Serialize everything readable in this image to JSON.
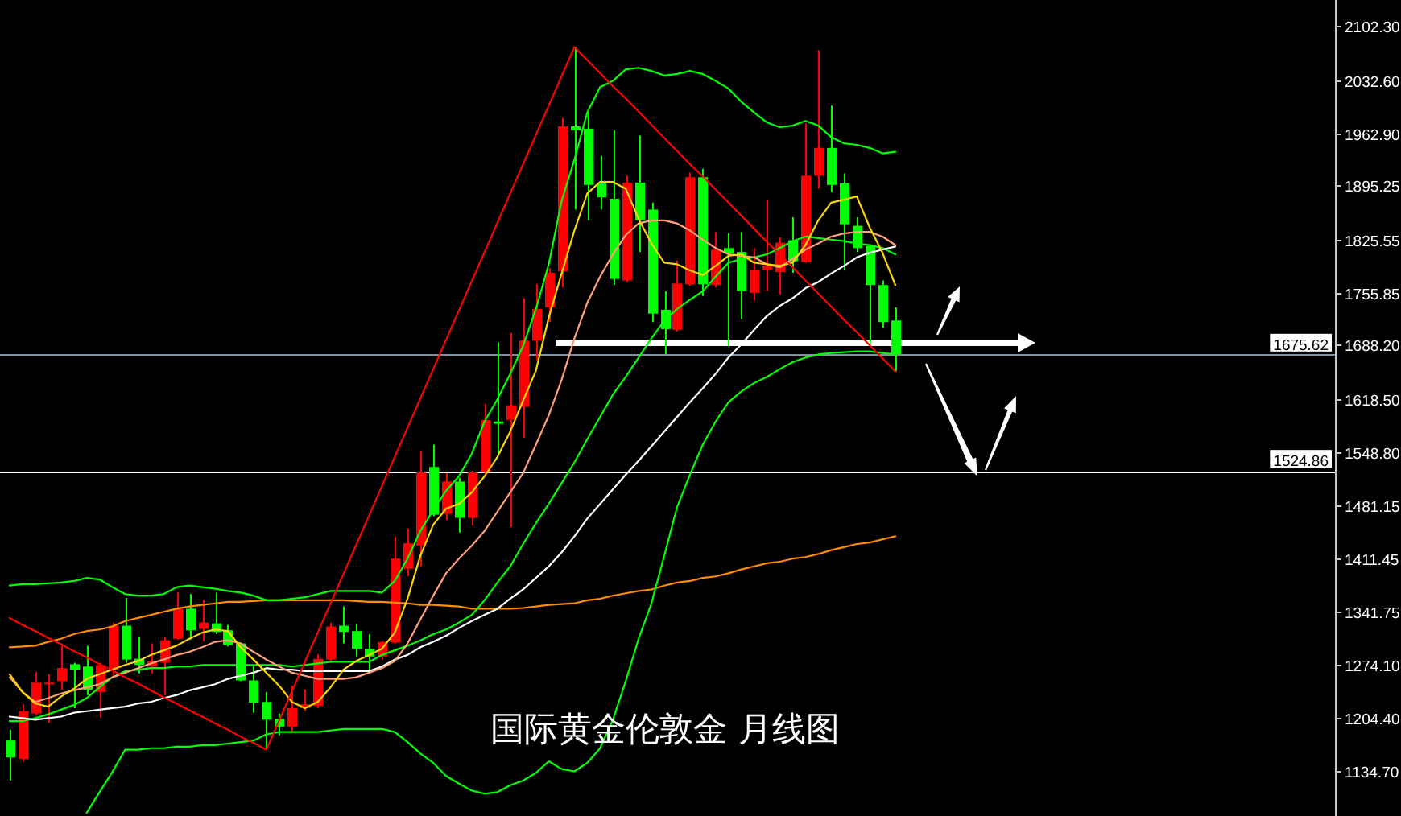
{
  "chart_data": {
    "type": "candlestick",
    "title": "国际黄金伦敦金 月线图",
    "categories": [
      null,
      null,
      null,
      null,
      null,
      null,
      null,
      null,
      null,
      null,
      null,
      null,
      null,
      null,
      null,
      null,
      null,
      null,
      null,
      null,
      null,
      null,
      null,
      null,
      null,
      null,
      null,
      null,
      null,
      null,
      null,
      null,
      null,
      null,
      null,
      null,
      null,
      null,
      null,
      null,
      null,
      null,
      null,
      null,
      null,
      null,
      null,
      null,
      null,
      null,
      null,
      null,
      null,
      null,
      null,
      null,
      null,
      null,
      null,
      null,
      null,
      null,
      null,
      null,
      null,
      null,
      null,
      null,
      null,
      null
    ],
    "ohlc": [
      [
        1175,
        1189,
        1123,
        1153
      ],
      [
        1151,
        1222,
        1147,
        1213
      ],
      [
        1210,
        1264,
        1207,
        1250
      ],
      [
        1248,
        1261,
        1198,
        1250
      ],
      [
        1252,
        1298,
        1241,
        1269
      ],
      [
        1274,
        1276,
        1217,
        1267
      ],
      [
        1271,
        1298,
        1234,
        1241
      ],
      [
        1238,
        1276,
        1205,
        1273
      ],
      [
        1267,
        1328,
        1259,
        1324
      ],
      [
        1324,
        1360,
        1276,
        1280
      ],
      [
        1281,
        1309,
        1262,
        1273
      ],
      [
        1271,
        1301,
        1262,
        1278
      ],
      [
        1276,
        1309,
        1234,
        1305
      ],
      [
        1307,
        1367,
        1306,
        1346
      ],
      [
        1346,
        1365,
        1306,
        1318
      ],
      [
        1320,
        1358,
        1304,
        1328
      ],
      [
        1327,
        1367,
        1313,
        1316
      ],
      [
        1318,
        1325,
        1297,
        1299
      ],
      [
        1301,
        1302,
        1252,
        1253
      ],
      [
        1253,
        1273,
        1211,
        1224
      ],
      [
        1225,
        1238,
        1163,
        1202
      ],
      [
        1203,
        1210,
        1182,
        1193
      ],
      [
        1193,
        1246,
        1186,
        1217
      ],
      [
        1217,
        1241,
        1213,
        1222
      ],
      [
        1220,
        1287,
        1217,
        1281
      ],
      [
        1280,
        1328,
        1278,
        1323
      ],
      [
        1324,
        1349,
        1301,
        1316
      ],
      [
        1317,
        1326,
        1284,
        1294
      ],
      [
        1294,
        1313,
        1267,
        1284
      ],
      [
        1284,
        1304,
        1280,
        1303
      ],
      [
        1302,
        1440,
        1301,
        1411
      ],
      [
        1398,
        1450,
        1388,
        1431
      ],
      [
        1428,
        1551,
        1401,
        1523
      ],
      [
        1530,
        1559,
        1466,
        1468
      ],
      [
        1469,
        1522,
        1461,
        1511
      ],
      [
        1511,
        1516,
        1445,
        1464
      ],
      [
        1464,
        1525,
        1454,
        1523
      ],
      [
        1523,
        1612,
        1520,
        1591
      ],
      [
        1589,
        1692,
        1548,
        1586
      ],
      [
        1591,
        1704,
        1452,
        1610
      ],
      [
        1608,
        1749,
        1568,
        1694
      ],
      [
        1694,
        1767,
        1669,
        1735
      ],
      [
        1737,
        1788,
        1718,
        1782
      ],
      [
        1784,
        1983,
        1763,
        1972
      ],
      [
        1972,
        2075,
        1864,
        1967
      ],
      [
        1969,
        1990,
        1850,
        1896
      ],
      [
        1898,
        1934,
        1864,
        1880
      ],
      [
        1878,
        1967,
        1766,
        1774
      ],
      [
        1772,
        1908,
        1770,
        1899
      ],
      [
        1899,
        1960,
        1809,
        1850
      ],
      [
        1864,
        1873,
        1718,
        1729
      ],
      [
        1734,
        1758,
        1676,
        1709
      ],
      [
        1708,
        1798,
        1706,
        1768
      ],
      [
        1767,
        1912,
        1765,
        1906
      ],
      [
        1906,
        1917,
        1752,
        1767
      ],
      [
        1766,
        1835,
        1763,
        1812
      ],
      [
        1814,
        1833,
        1687,
        1807
      ],
      [
        1809,
        1835,
        1722,
        1758
      ],
      [
        1756,
        1814,
        1746,
        1786
      ],
      [
        1786,
        1877,
        1758,
        1791
      ],
      [
        1783,
        1828,
        1754,
        1821
      ],
      [
        1824,
        1854,
        1782,
        1797
      ],
      [
        1796,
        1976,
        1795,
        1908
      ],
      [
        1908,
        2071,
        1891,
        1944
      ],
      [
        1944,
        1999,
        1887,
        1896
      ],
      [
        1898,
        1911,
        1786,
        1845
      ],
      [
        1843,
        1854,
        1809,
        1814
      ],
      [
        1817,
        1819,
        1690,
        1766
      ],
      [
        1766,
        1772,
        1711,
        1718
      ],
      [
        1720,
        1737,
        1654,
        1676
      ]
    ],
    "colors": [
      "#00ff00",
      "#ff0000",
      "#ff0000",
      "#ff0000",
      "#ff0000",
      "#00ff00",
      "#00ff00",
      "#ff0000",
      "#ff0000",
      "#00ff00",
      "#00ff00",
      "#ff0000",
      "#ff0000",
      "#ff0000",
      "#00ff00",
      "#ff0000",
      "#00ff00",
      "#00ff00",
      "#00ff00",
      "#00ff00",
      "#00ff00",
      "#00ff00",
      "#ff0000",
      "#ff0000",
      "#ff0000",
      "#ff0000",
      "#00ff00",
      "#00ff00",
      "#00ff00",
      "#ff0000",
      "#ff0000",
      "#ff0000",
      "#ff0000",
      "#00ff00",
      "#ff0000",
      "#00ff00",
      "#ff0000",
      "#ff0000",
      "#00ff00",
      "#ff0000",
      "#ff0000",
      "#ff0000",
      "#ff0000",
      "#ff0000",
      "#00ff00",
      "#00ff00",
      "#00ff00",
      "#00ff00",
      "#ff0000",
      "#00ff00",
      "#00ff00",
      "#00ff00",
      "#ff0000",
      "#ff0000",
      "#00ff00",
      "#ff0000",
      "#00ff00",
      "#00ff00",
      "#ff0000",
      "#ff0000",
      "#ff0000",
      "#00ff00",
      "#ff0000",
      "#ff0000",
      "#00ff00",
      "#00ff00",
      "#00ff00",
      "#00ff00",
      "#00ff00",
      "#00ff00"
    ],
    "series": [
      {
        "type": "line",
        "color": "#ff8c00",
        "values": [
          1296,
          1297,
          1298,
          1303,
          1307,
          1313,
          1317,
          1319,
          1323,
          1330,
          1334,
          1338,
          1342,
          1346,
          1349,
          1351,
          1353,
          1355,
          1355,
          1356,
          1357,
          1357,
          1357,
          1357,
          1357,
          1357,
          1357,
          1356,
          1355,
          1355,
          1354,
          1353,
          1351,
          1351,
          1350,
          1349,
          1346,
          1346,
          1346,
          1346,
          1347,
          1349,
          1351,
          1352,
          1353,
          1357,
          1359,
          1363,
          1366,
          1369,
          1371,
          1376,
          1380,
          1382,
          1386,
          1388,
          1392,
          1397,
          1401,
          1405,
          1407,
          1411,
          1413,
          1417,
          1422,
          1426,
          1430,
          1432,
          1436,
          1440
        ]
      },
      {
        "type": "line",
        "color": "#00ff00",
        "values": [
          1376,
          1378,
          1378,
          1379,
          1380,
          1382,
          1386,
          1384,
          1374,
          1365,
          1363,
          1363,
          1365,
          1374,
          1376,
          1374,
          1372,
          1369,
          1367,
          1363,
          1357,
          1357,
          1359,
          1361,
          1365,
          1369,
          1369,
          1369,
          1369,
          1367,
          1382,
          1411,
          1447,
          1474,
          1499,
          1518,
          1547,
          1589,
          1618,
          1651,
          1687,
          1735,
          1793,
          1875,
          1929,
          1990,
          2023,
          2031,
          2046,
          2048,
          2044,
          2038,
          2040,
          2044,
          2040,
          2031,
          2021,
          2004,
          1990,
          1977,
          1971,
          1973,
          1979,
          1973,
          1958,
          1950,
          1948,
          1944,
          1937,
          1939
        ]
      },
      {
        "type": "line",
        "color": "#00ff00",
        "values": [
          1200,
          1200,
          1204,
          1209,
          1215,
          1221,
          1230,
          1244,
          1257,
          1265,
          1267,
          1269,
          1269,
          1271,
          1271,
          1273,
          1273,
          1273,
          1273,
          1273,
          1273,
          1273,
          1271,
          1273,
          1275,
          1277,
          1277,
          1277,
          1277,
          1286,
          1292,
          1298,
          1305,
          1313,
          1319,
          1328,
          1338,
          1357,
          1380,
          1401,
          1430,
          1457,
          1482,
          1509,
          1536,
          1566,
          1595,
          1624,
          1647,
          1672,
          1697,
          1720,
          1735,
          1747,
          1758,
          1777,
          1795,
          1800,
          1802,
          1806,
          1814,
          1823,
          1829,
          1827,
          1825,
          1823,
          1820,
          1818,
          1814,
          1806
        ]
      },
      {
        "type": "line",
        "color": "#00ff00",
        "values": [
          null,
          null,
          null,
          null,
          null,
          null,
          1081,
          1108,
          1134,
          1163,
          1163,
          1165,
          1165,
          1167,
          1167,
          1169,
          1169,
          1171,
          1173,
          1175,
          1183,
          1186,
          1186,
          1186,
          1186,
          1188,
          1190,
          1190,
          1190,
          1190,
          1186,
          1173,
          1158,
          1146,
          1129,
          1119,
          1110,
          1106,
          1108,
          1117,
          1123,
          1133,
          1148,
          1138,
          1135,
          1146,
          1165,
          1202,
          1252,
          1307,
          1353,
          1415,
          1478,
          1520,
          1559,
          1589,
          1614,
          1628,
          1639,
          1647,
          1657,
          1666,
          1672,
          1676,
          1678,
          1679,
          1680,
          1680,
          1678,
          1676
        ]
      },
      {
        "type": "line",
        "color": "#ffffff",
        "values": [
          1206,
          1204,
          1202,
          1204,
          1206,
          1211,
          1213,
          1215,
          1217,
          1219,
          1223,
          1225,
          1230,
          1234,
          1240,
          1244,
          1248,
          1255,
          1259,
          1263,
          1269,
          1267,
          1267,
          1265,
          1265,
          1265,
          1265,
          1265,
          1265,
          1271,
          1280,
          1286,
          1296,
          1303,
          1311,
          1321,
          1330,
          1338,
          1346,
          1359,
          1371,
          1386,
          1401,
          1419,
          1440,
          1463,
          1482,
          1501,
          1520,
          1538,
          1557,
          1576,
          1595,
          1614,
          1632,
          1651,
          1672,
          1689,
          1708,
          1726,
          1739,
          1749,
          1762,
          1770,
          1781,
          1791,
          1802,
          1808,
          1812,
          1816
        ]
      },
      {
        "type": "line",
        "color": "#ffa07a",
        "values": [
          1257,
          1238,
          1225,
          1230,
          1236,
          1240,
          1244,
          1248,
          1257,
          1263,
          1269,
          1275,
          1280,
          1286,
          1290,
          1296,
          1303,
          1305,
          1301,
          1290,
          1280,
          1271,
          1263,
          1259,
          1255,
          1255,
          1255,
          1257,
          1263,
          1269,
          1278,
          1301,
          1332,
          1363,
          1392,
          1411,
          1428,
          1447,
          1472,
          1497,
          1522,
          1559,
          1597,
          1643,
          1697,
          1743,
          1777,
          1806,
          1831,
          1846,
          1850,
          1850,
          1846,
          1837,
          1825,
          1814,
          1806,
          1804,
          1802,
          1793,
          1789,
          1800,
          1812,
          1820,
          1829,
          1833,
          1835,
          1835,
          1829,
          1818
        ]
      },
      {
        "type": "line",
        "color": "#ffd700",
        "values": [
          1261,
          1238,
          1223,
          1219,
          1232,
          1242,
          1255,
          1261,
          1267,
          1273,
          1278,
          1286,
          1292,
          1298,
          1307,
          1315,
          1319,
          1317,
          1296,
          1280,
          1263,
          1246,
          1225,
          1217,
          1225,
          1244,
          1267,
          1278,
          1286,
          1294,
          1315,
          1359,
          1415,
          1455,
          1476,
          1482,
          1497,
          1518,
          1543,
          1576,
          1616,
          1655,
          1724,
          1781,
          1837,
          1885,
          1900,
          1900,
          1891,
          1852,
          1820,
          1795,
          1793,
          1785,
          1779,
          1791,
          1804,
          1806,
          1795,
          1793,
          1791,
          1795,
          1818,
          1850,
          1873,
          1877,
          1881,
          1841,
          1808,
          1766
        ]
      },
      {
        "type": "line",
        "color": "#ff0000",
        "values": [
          1334,
          1325,
          1317,
          1308,
          1300,
          1291,
          1283,
          1274,
          1266,
          1257,
          1249,
          1240,
          1231,
          1223,
          1214,
          1206,
          1197,
          1189,
          1180,
          1172,
          1163,
          1201,
          1239,
          1277,
          1315,
          1353,
          1391,
          1429,
          1467,
          1505,
          1543,
          1581,
          1619,
          1657,
          1695,
          1733,
          1771,
          1809,
          1847,
          1885,
          1923,
          1961,
          1999,
          2037,
          2075,
          2058,
          2041,
          2024,
          2008,
          1991,
          1974,
          1957,
          1940,
          1923,
          1907,
          1890,
          1873,
          1856,
          1839,
          1822,
          1806,
          1789,
          1772,
          1755,
          1738,
          1721,
          1705,
          1688,
          1671,
          1654
        ]
      }
    ],
    "ylim": [
      1077,
      2136
    ],
    "yticks": [
      {
        "value": 2102.3,
        "label": "2102.30"
      },
      {
        "value": 2032.6,
        "label": "2032.60"
      },
      {
        "value": 1962.9,
        "label": "1962.90"
      },
      {
        "value": 1895.25,
        "label": "1895.25"
      },
      {
        "value": 1825.55,
        "label": "1825.55"
      },
      {
        "value": 1755.85,
        "label": "1755.85"
      },
      {
        "value": 1688.2,
        "label": "1688.20"
      },
      {
        "value": 1618.5,
        "label": "1618.50"
      },
      {
        "value": 1548.8,
        "label": "1548.80"
      },
      {
        "value": 1481.15,
        "label": "1481.15"
      },
      {
        "value": 1411.45,
        "label": "1411.45"
      },
      {
        "value": 1341.75,
        "label": "1341.75"
      },
      {
        "value": 1274.1,
        "label": "1274.10"
      },
      {
        "value": 1204.4,
        "label": "1204.40"
      },
      {
        "value": 1134.7,
        "label": "1134.70"
      }
    ],
    "ref_lines": [
      {
        "axis": "y",
        "value": 1675.62,
        "label": "1675.62",
        "color": "#8090a0"
      },
      {
        "axis": "y",
        "value": 1524.86,
        "label": "1524.86",
        "color": "#ffffff"
      }
    ],
    "tick_labels": "y"
  }
}
